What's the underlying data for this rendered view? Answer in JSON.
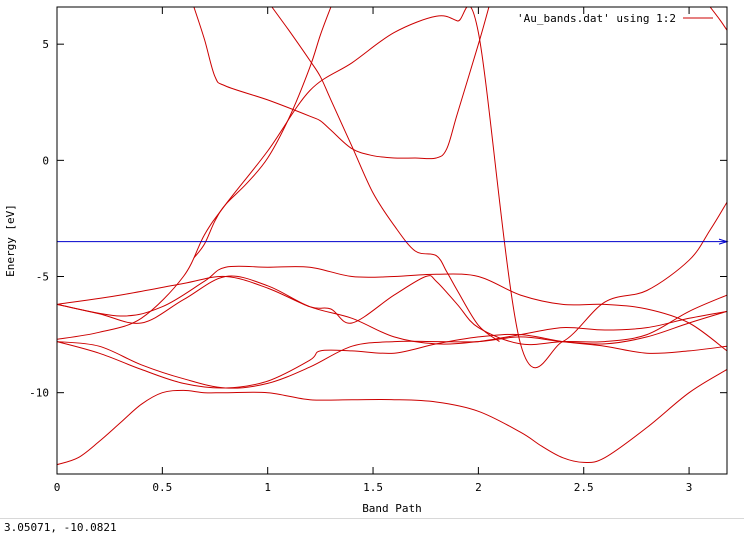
{
  "status": {
    "coordinates": "3.05071, -10.0821"
  },
  "chart_data": {
    "type": "line",
    "xlabel": "Band Path",
    "ylabel": "Energy [eV]",
    "xlim": [
      0,
      3.18
    ],
    "ylim": [
      -13.5,
      6.6
    ],
    "grid": false,
    "legend_position": "top-right",
    "x_ticks": [
      0,
      0.5,
      1,
      1.5,
      2,
      2.5,
      3
    ],
    "x_tick_labels": [
      "0",
      "0.5",
      "1",
      "1.5",
      "2",
      "2.5",
      "3"
    ],
    "y_ticks": [
      -10,
      -5,
      0,
      5
    ],
    "y_tick_labels": [
      "-10",
      "-5",
      "0",
      "5"
    ],
    "line_color": "#cc0000",
    "fermi_color": "#0000cc",
    "fermi_level": -3.5,
    "series": [
      {
        "name": "'Au_bands.dat' using 1:2",
        "x": [
          0,
          0.1,
          0.2,
          0.3,
          0.4,
          0.5,
          0.6,
          0.7,
          0.8,
          1.0,
          1.2,
          1.4,
          1.6,
          1.8,
          2.0,
          2.2,
          2.3,
          2.4,
          2.5,
          2.6,
          2.8,
          3.0,
          3.18
        ],
        "values": [
          -13.1,
          -12.8,
          -12.1,
          -11.3,
          -10.5,
          -10.0,
          -9.9,
          -10.0,
          -10.0,
          -10.0,
          -10.3,
          -10.3,
          -10.3,
          -10.4,
          -10.8,
          -11.7,
          -12.3,
          -12.8,
          -13.0,
          -12.8,
          -11.5,
          -10.0,
          -9.0
        ]
      },
      {
        "name": "",
        "x": [
          0,
          0.2,
          0.4,
          0.6,
          0.8,
          1.0,
          1.2,
          1.4,
          1.6,
          1.8,
          2.0,
          2.2,
          2.4,
          2.6,
          2.8,
          3.0,
          3.18
        ],
        "values": [
          -7.8,
          -8.0,
          -8.8,
          -9.4,
          -9.8,
          -9.6,
          -8.9,
          -8.0,
          -7.8,
          -7.8,
          -7.8,
          -7.6,
          -7.8,
          -7.9,
          -7.6,
          -7.0,
          -6.5
        ]
      },
      {
        "name": "",
        "x": [
          0,
          0.2,
          0.4,
          0.6,
          0.8,
          1.0,
          1.2,
          1.25,
          1.4,
          1.6,
          1.8,
          2.0,
          2.2,
          2.4,
          2.6,
          2.8,
          3.0,
          3.18
        ],
        "values": [
          -7.8,
          -8.3,
          -9.0,
          -9.6,
          -9.8,
          -9.5,
          -8.6,
          -8.2,
          -8.2,
          -8.3,
          -7.9,
          -7.6,
          -7.5,
          -7.8,
          -8.0,
          -8.3,
          -8.2,
          -8.0
        ]
      },
      {
        "name": "",
        "x": [
          0,
          0.3,
          0.5,
          0.7,
          0.8,
          1.0,
          1.2,
          1.4,
          1.6,
          1.8,
          2.0,
          2.2,
          2.4,
          2.6,
          2.8,
          3.0,
          3.18
        ],
        "values": [
          -6.2,
          -6.7,
          -6.3,
          -5.2,
          -4.6,
          -4.6,
          -4.6,
          -5.0,
          -5.0,
          -4.9,
          -5.0,
          -5.8,
          -6.2,
          -6.2,
          -6.4,
          -7.0,
          -8.2
        ]
      },
      {
        "name": "",
        "x": [
          0,
          0.2,
          0.4,
          0.6,
          0.8,
          1.0,
          1.2,
          1.4,
          1.6,
          1.8,
          2.0,
          2.2,
          2.4,
          2.6,
          2.8,
          3.0,
          3.18
        ],
        "values": [
          -6.2,
          -6.6,
          -7.0,
          -6.0,
          -5.0,
          -5.4,
          -6.3,
          -6.8,
          -7.6,
          -7.9,
          -7.8,
          -7.5,
          -7.2,
          -7.3,
          -7.2,
          -6.8,
          -6.5
        ]
      },
      {
        "name": "",
        "x": [
          0,
          0.3,
          0.6,
          0.8,
          1.0,
          1.2,
          1.3,
          1.4,
          1.6,
          1.75,
          1.8,
          1.9,
          2.0,
          2.2,
          2.4,
          2.6,
          2.8,
          3.0,
          3.18
        ],
        "values": [
          -6.2,
          -5.8,
          -5.3,
          -5.0,
          -5.5,
          -6.3,
          -6.4,
          -7.0,
          -5.8,
          -5.0,
          -5.2,
          -6.2,
          -7.2,
          -7.9,
          -7.8,
          -7.8,
          -7.5,
          -6.5,
          -5.8
        ]
      },
      {
        "name": "",
        "x": [
          0,
          0.2,
          0.4,
          0.6,
          0.7,
          0.8,
          1.0,
          1.2,
          1.4,
          1.6,
          1.8,
          1.9,
          2.0,
          2.2,
          2.4,
          2.6,
          2.8,
          3.0,
          3.1,
          3.18
        ],
        "values": [
          -7.7,
          -7.4,
          -6.8,
          -5.0,
          -3.2,
          -1.9,
          0.4,
          3.0,
          4.2,
          5.5,
          6.2,
          6.0,
          5.5,
          -7.9,
          -7.8,
          -6.1,
          -5.6,
          -4.3,
          -3.0,
          -1.8
        ]
      },
      {
        "name": "",
        "x": [
          0.65,
          0.7,
          0.75,
          0.8,
          1.0,
          1.2,
          1.25,
          1.3,
          1.4,
          1.5,
          1.6,
          1.7,
          1.8,
          1.85,
          1.9,
          2.0,
          2.05
        ],
        "values": [
          6.6,
          5.2,
          3.6,
          3.2,
          2.6,
          1.9,
          1.7,
          1.3,
          0.5,
          0.2,
          0.1,
          0.1,
          0.1,
          0.5,
          2.0,
          5.0,
          6.6
        ]
      },
      {
        "name": "",
        "x": [
          1.02,
          1.1,
          1.2,
          1.25,
          1.3,
          1.4,
          1.5,
          1.6,
          1.7,
          1.8,
          1.85,
          1.9,
          2.0,
          2.1
        ],
        "values": [
          6.6,
          5.6,
          4.3,
          3.6,
          2.6,
          0.6,
          -1.4,
          -2.8,
          -3.9,
          -4.1,
          -4.8,
          -5.6,
          -7.1,
          -7.8
        ]
      },
      {
        "name": "",
        "x": [
          1.3,
          1.25,
          1.2,
          1.1,
          1.0,
          0.9,
          0.8,
          0.75,
          0.7,
          0.65
        ],
        "values": [
          6.6,
          5.4,
          4.0,
          1.8,
          0.1,
          -1.0,
          -1.9,
          -2.6,
          -3.6,
          -4.2
        ]
      },
      {
        "name": "",
        "x": [
          3.1,
          3.15,
          3.18
        ],
        "values": [
          6.6,
          6.0,
          5.6
        ]
      }
    ]
  }
}
